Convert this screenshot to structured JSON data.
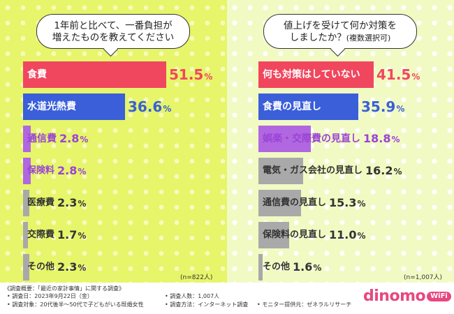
{
  "left": {
    "question_line1": "1年前と比べて、一番負担が",
    "question_line2": "増えたものを教えてください",
    "n_label": "(n=822人)"
  },
  "right": {
    "question_line1": "値上げを受けて何か対策を",
    "question_line2": "しましたか？",
    "question_note": "(複数選択可)",
    "n_label": "(n=1,007人)"
  },
  "footer": {
    "overview": "《調査概要：「最近の家計事情」に関する調査》",
    "date": "• 調査日：2023年9月22日（金）",
    "target": "• 調査対象：20代後半～50代で子どもがいる既婚女性",
    "count": "• 調査人数：1,007人",
    "method": "• 調査方法：インターネット調査",
    "provider": "• モニター提供元：ゼネラルリサーチ"
  },
  "logo": {
    "text": "dinomo",
    "badge": "WiFi"
  },
  "colors": {
    "red": "#f0475e",
    "blue": "#3a5fd9",
    "purple": "#b067e0",
    "gray": "#a9a9a9"
  },
  "chart_data": [
    {
      "type": "bar",
      "title": "1年前と比べて、一番負担が増えたものを教えてください",
      "categories": [
        "食費",
        "水道光熱費",
        "通信費",
        "保険料",
        "医療費",
        "交際費",
        "その他"
      ],
      "values": [
        51.5,
        36.6,
        2.8,
        2.8,
        2.3,
        1.7,
        2.3
      ],
      "colors": [
        "#f0475e",
        "#3a5fd9",
        "#b067e0",
        "#b067e0",
        "#a9a9a9",
        "#a9a9a9",
        "#a9a9a9"
      ],
      "unit": "%"
    },
    {
      "type": "bar",
      "title": "値上げを受けて何か対策をしましたか？(複数選択可)",
      "categories": [
        "何も対策はしていない",
        "食費の見直し",
        "娯楽・交際費の見直し",
        "電気・ガス会社の見直し",
        "通信費の見直し",
        "保険料の見直し",
        "その他"
      ],
      "values": [
        41.5,
        35.9,
        18.8,
        16.2,
        15.3,
        11.0,
        1.6
      ],
      "colors": [
        "#f0475e",
        "#3a5fd9",
        "#b067e0",
        "#a9a9a9",
        "#a9a9a9",
        "#a9a9a9",
        "#a9a9a9"
      ],
      "unit": "%"
    }
  ]
}
